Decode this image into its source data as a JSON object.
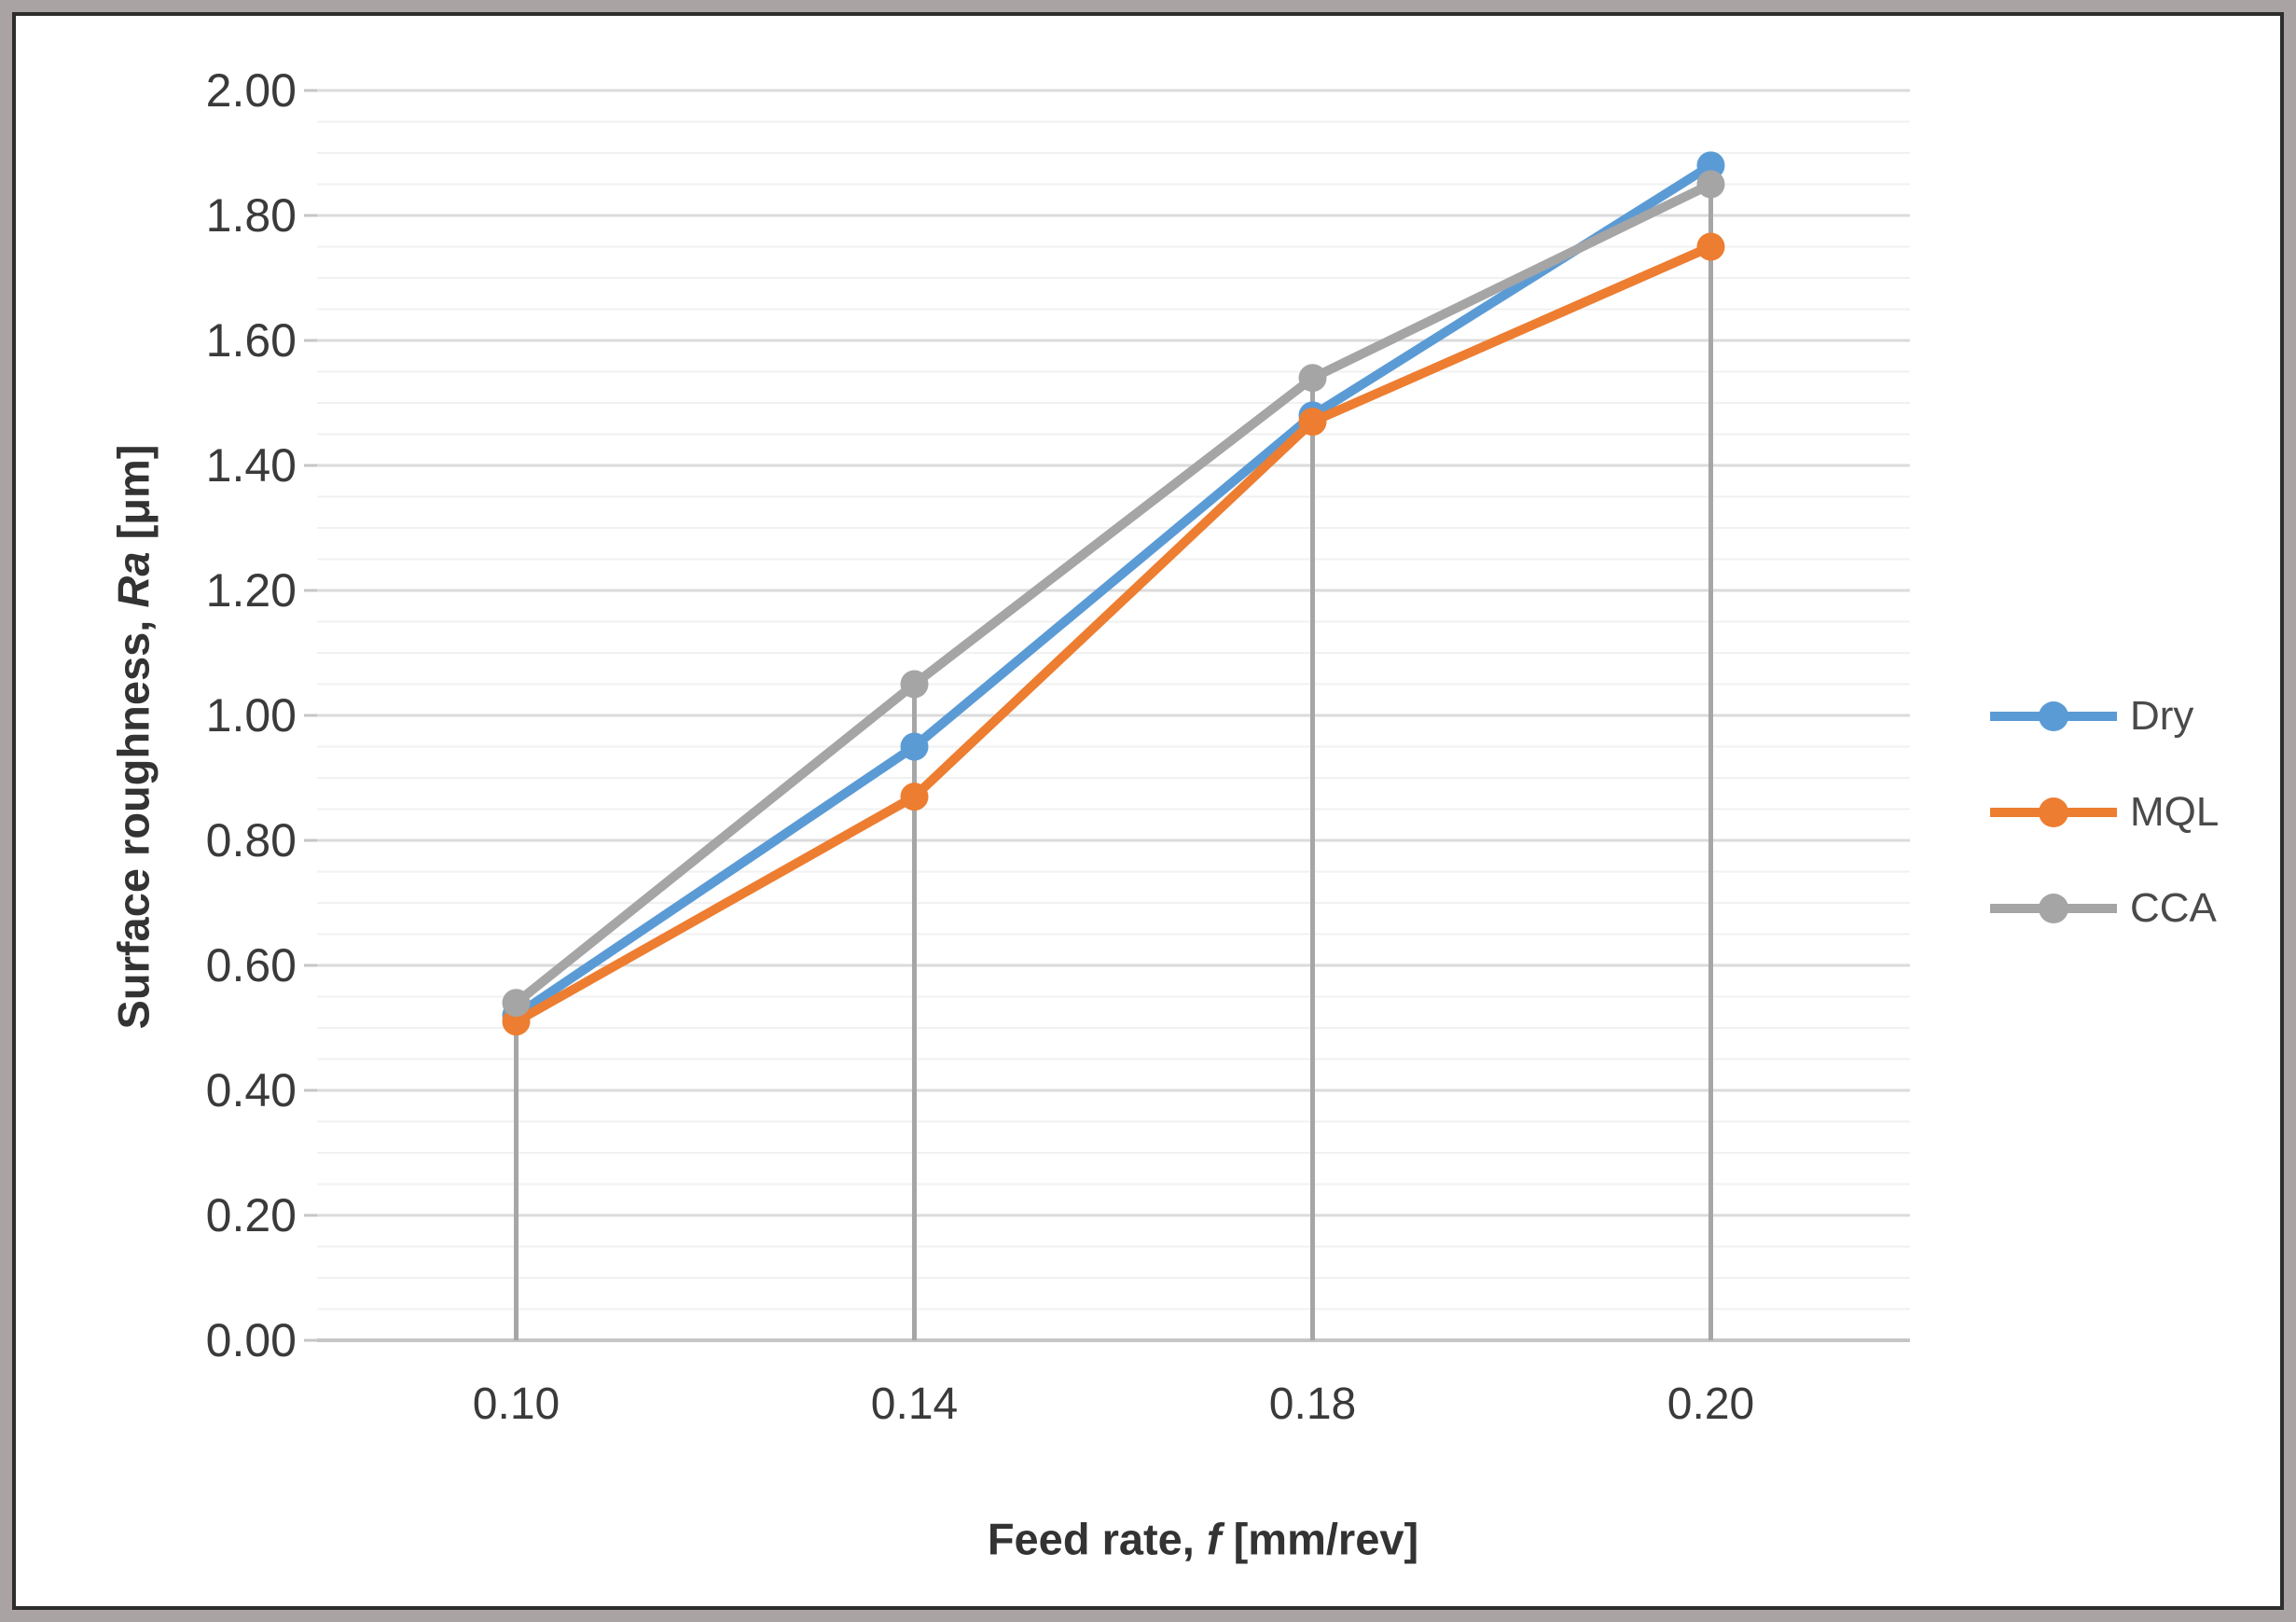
{
  "chart_data": {
    "type": "line",
    "title": "",
    "xlabel": "Feed rate, f [mm/rev]",
    "xlabel_parts": {
      "prefix": "Feed rate, ",
      "italic": "f",
      "suffix": " [mm/rev]"
    },
    "ylabel": "Surface roughness, Ra [μm]",
    "ylabel_parts": {
      "prefix": "Surface roughness, ",
      "italic": "Ra",
      "suffix": " [μm]"
    },
    "categories": [
      "0.10",
      "0.14",
      "0.18",
      "0.20"
    ],
    "series": [
      {
        "name": "Dry",
        "color": "#5B9BD5",
        "values": [
          0.52,
          0.95,
          1.48,
          1.88
        ]
      },
      {
        "name": "MQL",
        "color": "#ED7D31",
        "values": [
          0.51,
          0.87,
          1.47,
          1.75
        ]
      },
      {
        "name": "CCA",
        "color": "#A5A5A5",
        "values": [
          0.54,
          1.05,
          1.54,
          1.85
        ]
      }
    ],
    "ylim": [
      0,
      2
    ],
    "y_major_step": 0.2,
    "y_minor_step": 0.05,
    "y_tick_labels": [
      "2.00",
      "1.80",
      "1.60",
      "1.40",
      "1.20",
      "1.00",
      "0.80",
      "0.60",
      "0.40",
      "0.20",
      "0.00"
    ],
    "grid": true,
    "minor_grid": true,
    "drop_lines": true,
    "marker": "circle",
    "legend_position": "right",
    "legend_entries": [
      "Dry",
      "MQL",
      "CCA"
    ]
  },
  "styles": {
    "major_grid_color": "#DBDBDB",
    "minor_grid_color": "#F1F1F1",
    "axis_line_color": "#C6C6C6",
    "tick_mark_color": "#C6C6C6",
    "drop_line_color": "#A6A6A6",
    "tick_label_color": "#3A3A3A",
    "axis_title_color": "#333333",
    "legend_text_color": "#4A4A4A",
    "frame_outer_color": "#A9A3A3",
    "frame_inner_color": "#2D2D2D",
    "background_color": "#FFFFFF"
  }
}
